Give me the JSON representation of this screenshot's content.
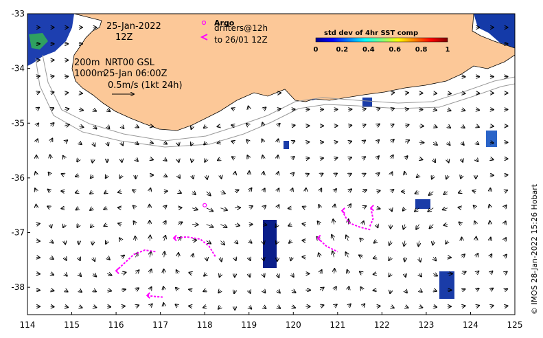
{
  "map": {
    "lon_range": [
      114,
      125
    ],
    "lat_range": [
      -38.5,
      -33
    ],
    "x_ticks": [
      "114",
      "115",
      "116",
      "117",
      "118",
      "119",
      "120",
      "121",
      "122",
      "123",
      "124",
      "125"
    ],
    "y_ticks": [
      "-33",
      "-34",
      "-35",
      "-36",
      "-37",
      "-38"
    ],
    "colors": {
      "land": "#fcc898",
      "ocean": "#ffffff",
      "drifter": "#ff00ff",
      "vector": "#000000",
      "bathymetry": "#999999"
    }
  },
  "annotations": {
    "date_line1": "25-Jan-2022",
    "date_line2": "12Z",
    "depth_200": "200m",
    "depth_1000": "1000m",
    "product": "NRT00 GSL",
    "product_time": "25-Jan 06:00Z",
    "scale_label": "0.5m/s (1kt 24h)"
  },
  "legend": {
    "argo_label": "Argo",
    "drifters_line1": "drifters@12h",
    "drifters_line2": "to 26/01 12Z",
    "argo_icon": "circle-icon",
    "drifter_icon": "chevron-left-icon"
  },
  "colorbar": {
    "title": "std dev of 4hr SST comp",
    "ticks": [
      "0",
      "0.2",
      "0.4",
      "0.6",
      "0.8",
      "1"
    ],
    "range": [
      0,
      1
    ]
  },
  "credit": "© IMOS 28-Jan-2022 15:26 Hobart",
  "argo_float": {
    "lon": 118.0,
    "lat": -36.5
  },
  "drifter_tracks": [
    [
      [
        116.0,
        -37.7
      ],
      [
        116.2,
        -37.55
      ],
      [
        116.4,
        -37.4
      ],
      [
        116.65,
        -37.32
      ],
      [
        116.9,
        -37.35
      ]
    ],
    [
      [
        117.3,
        -37.1
      ],
      [
        117.6,
        -37.08
      ],
      [
        117.9,
        -37.12
      ],
      [
        118.1,
        -37.25
      ],
      [
        118.25,
        -37.45
      ]
    ],
    [
      [
        116.7,
        -38.15
      ],
      [
        116.9,
        -38.17
      ],
      [
        117.05,
        -38.18
      ]
    ],
    [
      [
        120.55,
        -37.1
      ],
      [
        120.75,
        -37.25
      ],
      [
        121.0,
        -37.35
      ]
    ],
    [
      [
        121.1,
        -36.6
      ],
      [
        121.25,
        -36.82
      ],
      [
        121.5,
        -36.9
      ],
      [
        121.75,
        -36.95
      ]
    ],
    [
      [
        121.75,
        -36.55
      ],
      [
        121.8,
        -36.75
      ],
      [
        121.72,
        -36.9
      ]
    ]
  ]
}
